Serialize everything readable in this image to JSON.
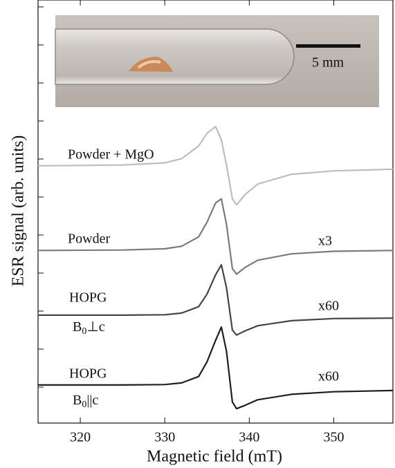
{
  "chart_data": {
    "type": "line",
    "x_label": "Magnetic field (mT)",
    "y_label": "ESR signal (arb. units)",
    "xlim": [
      315,
      357
    ],
    "xticks": [
      320,
      330,
      340,
      350
    ],
    "ylim": [
      0,
      100
    ],
    "x": [
      315,
      325,
      330,
      332,
      334,
      335,
      336,
      336.7,
      337.3,
      338,
      338.5,
      339.5,
      341,
      345,
      350,
      357
    ],
    "series": [
      {
        "name": "Powder + MgO",
        "color": "#bdbdbd",
        "values": [
          60.8,
          61,
          61.5,
          62.5,
          65.5,
          68.5,
          70.1,
          67,
          61,
          53,
          51.6,
          54,
          56.5,
          58.8,
          59.6,
          60
        ]
      },
      {
        "name": "Powder",
        "color": "#7a7a7a",
        "values": [
          40.8,
          40.9,
          41.2,
          41.8,
          44,
          47.5,
          52,
          53,
          47,
          36.5,
          35.2,
          36.8,
          38.5,
          40,
          40.6,
          40.8
        ]
      },
      {
        "name": "HOPG",
        "color": "#444444",
        "values": [
          25.5,
          25.5,
          25.6,
          26,
          27.5,
          30.5,
          35,
          37.4,
          32,
          22,
          20.8,
          21.8,
          23,
          24.2,
          24.7,
          24.8
        ]
      },
      {
        "name": "HOPG",
        "color": "#1e1e1e",
        "values": [
          9,
          9,
          9.1,
          9.5,
          11,
          14.5,
          19.5,
          22.7,
          17,
          5,
          3.4,
          4.2,
          5.5,
          6.8,
          7.4,
          7.7
        ]
      }
    ],
    "annotations": [
      "x3",
      "x60",
      "x60"
    ],
    "orientations": [
      {
        "base": "B",
        "sub": "0",
        "rest": "⊥c"
      },
      {
        "base": "B",
        "sub": "0",
        "rest": "||c"
      }
    ],
    "scale_bar": "5 mm"
  }
}
